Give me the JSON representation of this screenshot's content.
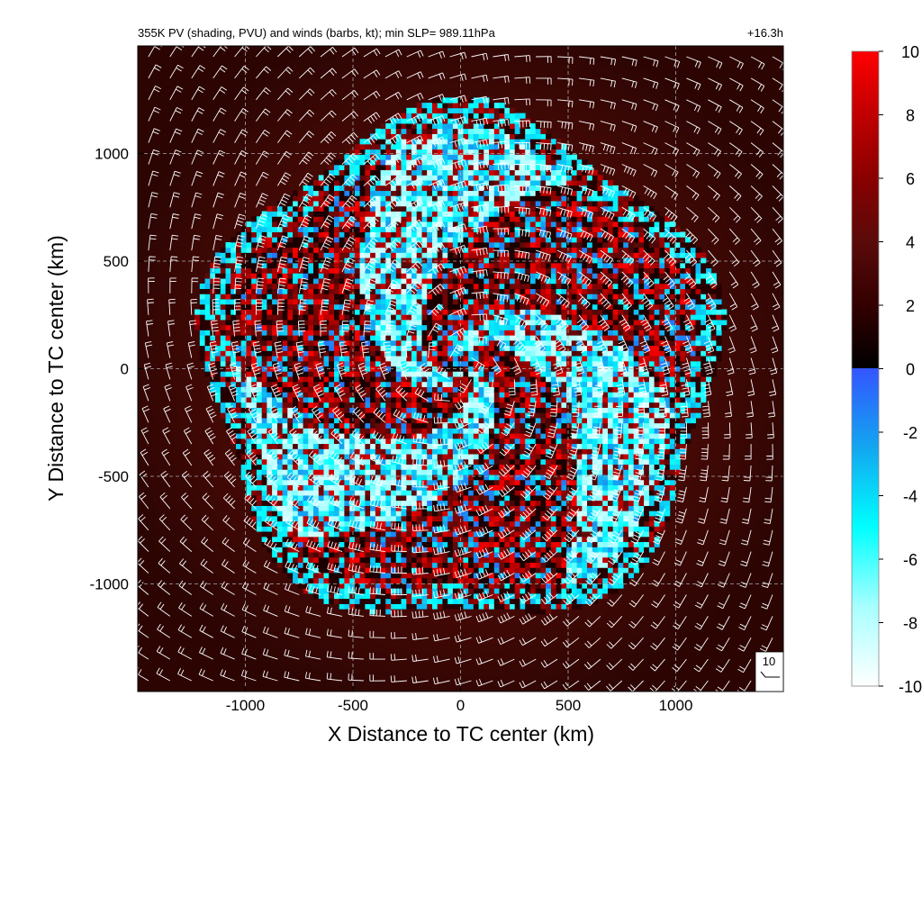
{
  "chart_data": {
    "type": "heatmap",
    "title": "355K PV (shading, PVU) and winds (barbs, kt); min SLP= 989.11hPa",
    "time_label": "+16.3h",
    "xlabel": "X Distance to TC center (km)",
    "ylabel": "Y Distance to TC center (km)",
    "xlim": [
      -1500,
      1500
    ],
    "ylim": [
      -1500,
      1500
    ],
    "x_ticks": [
      -1000,
      -500,
      0,
      500,
      1000
    ],
    "y_ticks": [
      -1000,
      -500,
      0,
      500,
      1000
    ],
    "x_tick_labels": [
      "-1000",
      "-500",
      "0",
      "500",
      "1000"
    ],
    "y_tick_labels": [
      "-1000",
      "-500",
      "0",
      "500",
      "1000"
    ],
    "grid": true,
    "colorbar": {
      "range": [
        -10,
        10
      ],
      "tick_values": [
        10,
        8,
        6,
        4,
        2,
        0,
        -2,
        -4,
        -6,
        -8,
        -10
      ],
      "tick_labels": [
        "10",
        "8",
        "6",
        "4",
        "2",
        "0",
        "-2",
        "-4",
        "-6",
        "-8",
        "-10"
      ],
      "colors_positive": [
        "#000000",
        "#330000",
        "#5a0a0a",
        "#8a0000",
        "#c00000",
        "#ff0000"
      ],
      "colors_negative": [
        "#ffffff",
        "#a8ffff",
        "#00ffff",
        "#12a6f0",
        "#3355ff"
      ]
    },
    "wind_reference": {
      "speed": 10,
      "label": "10",
      "units": "kt"
    },
    "features": {
      "disturbed_region_radius_km": 1250,
      "background_pv_pvu": 1.5
    }
  }
}
